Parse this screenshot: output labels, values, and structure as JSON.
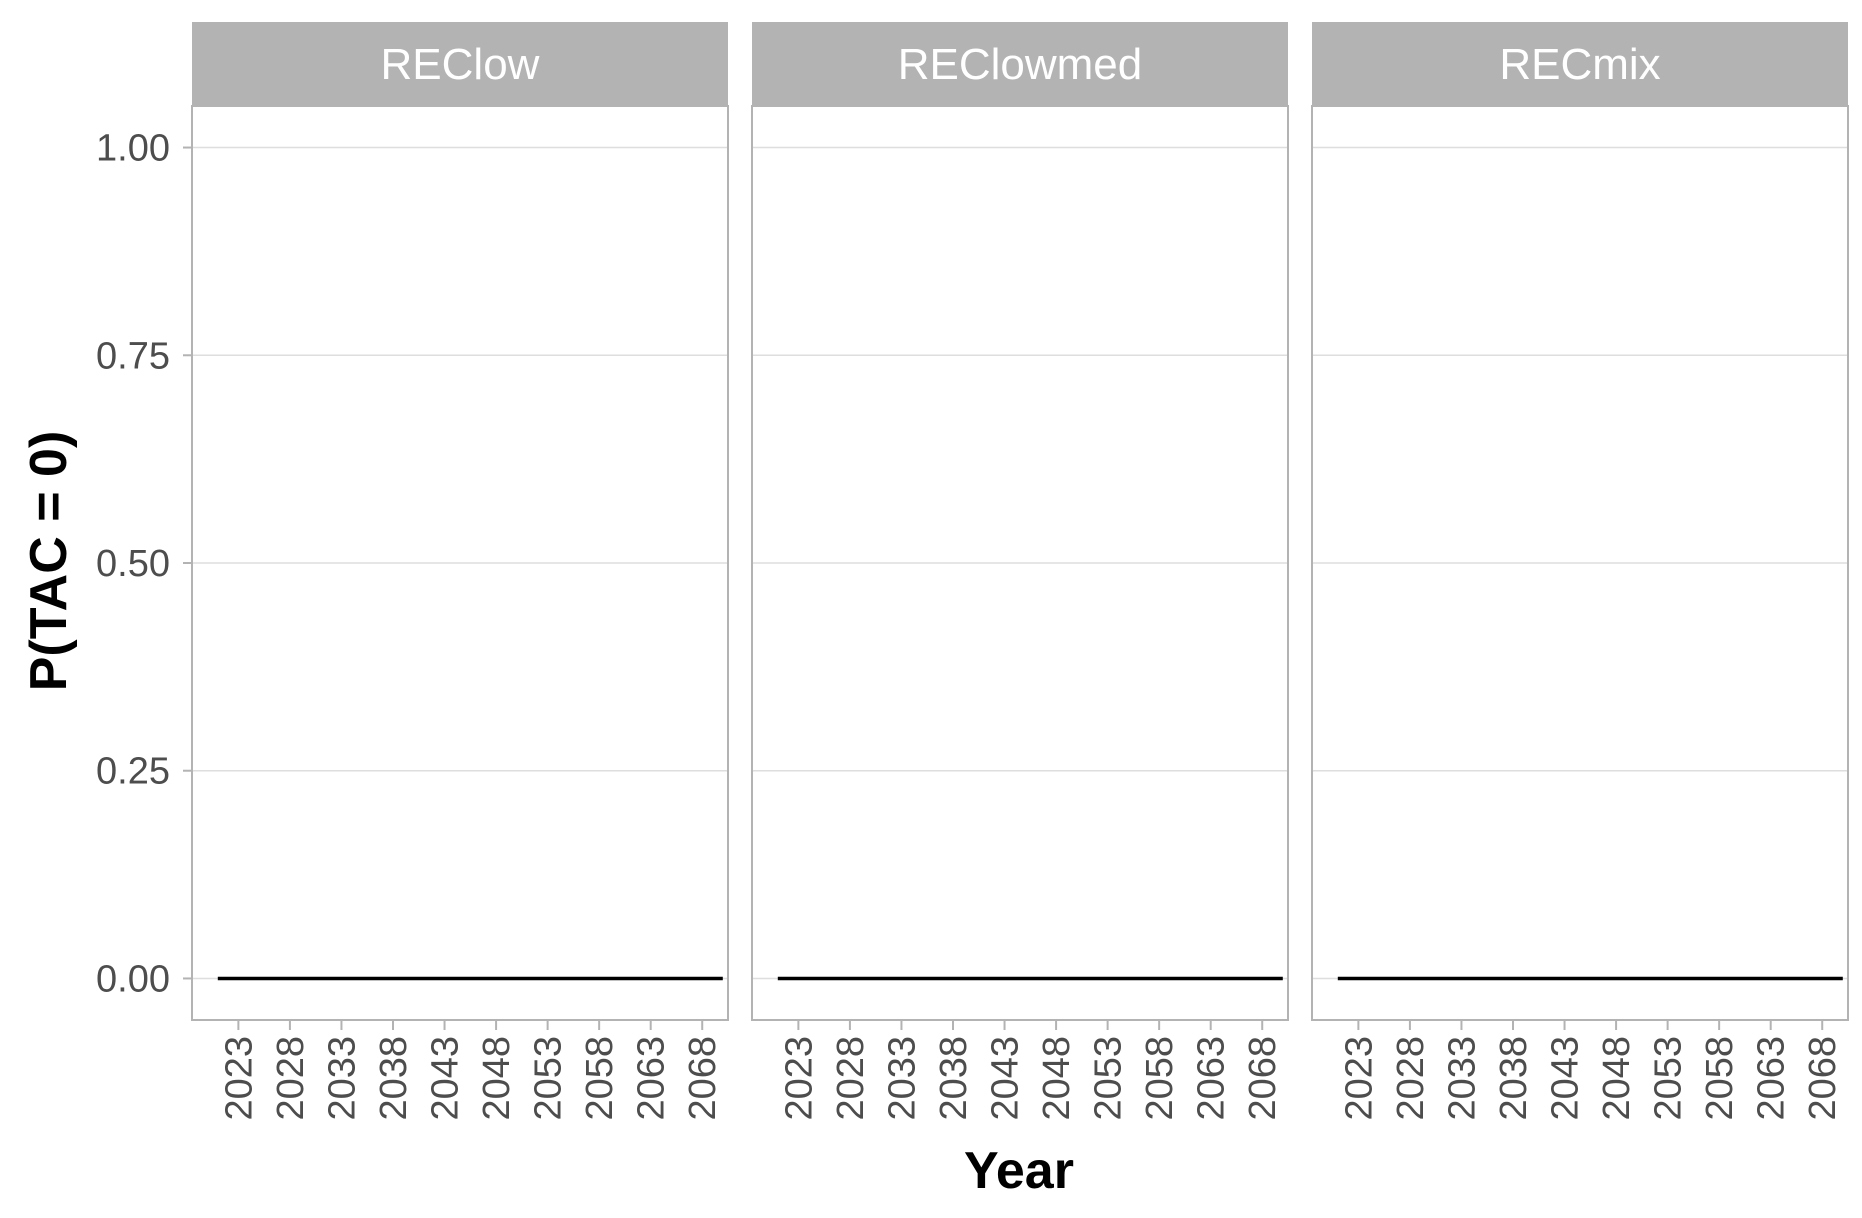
{
  "chart_data": {
    "type": "line",
    "facet_label": "Year",
    "xlabel": "Year",
    "ylabel": "P(TAC = 0)",
    "ylim": [
      -0.05,
      1.05
    ],
    "xlim": [
      2018.5,
      2070.5
    ],
    "yticks": [
      0.0,
      0.25,
      0.5,
      0.75,
      1.0
    ],
    "ytick_labels": [
      "0.00",
      "0.25",
      "0.50",
      "0.75",
      "1.00"
    ],
    "xticks": [
      2023,
      2028,
      2033,
      2038,
      2043,
      2048,
      2053,
      2058,
      2063,
      2068
    ],
    "xtick_labels": [
      "2023",
      "2028",
      "2033",
      "2038",
      "2043",
      "2048",
      "2053",
      "2058",
      "2063",
      "2068"
    ],
    "grid": "horizontal major",
    "legend": "none",
    "colors": {
      "strip_bg": "#b3b3b3",
      "panel_border": "#b3b3b3",
      "grid": "#dedede",
      "line": "#000000"
    },
    "panels": [
      {
        "name": "REClow",
        "x": [
          2021,
          2070
        ],
        "y": [
          0,
          0
        ]
      },
      {
        "name": "REClowmed",
        "x": [
          2021,
          2070
        ],
        "y": [
          0,
          0
        ]
      },
      {
        "name": "RECmix",
        "x": [
          2021,
          2070
        ],
        "y": [
          0,
          0
        ]
      }
    ]
  }
}
